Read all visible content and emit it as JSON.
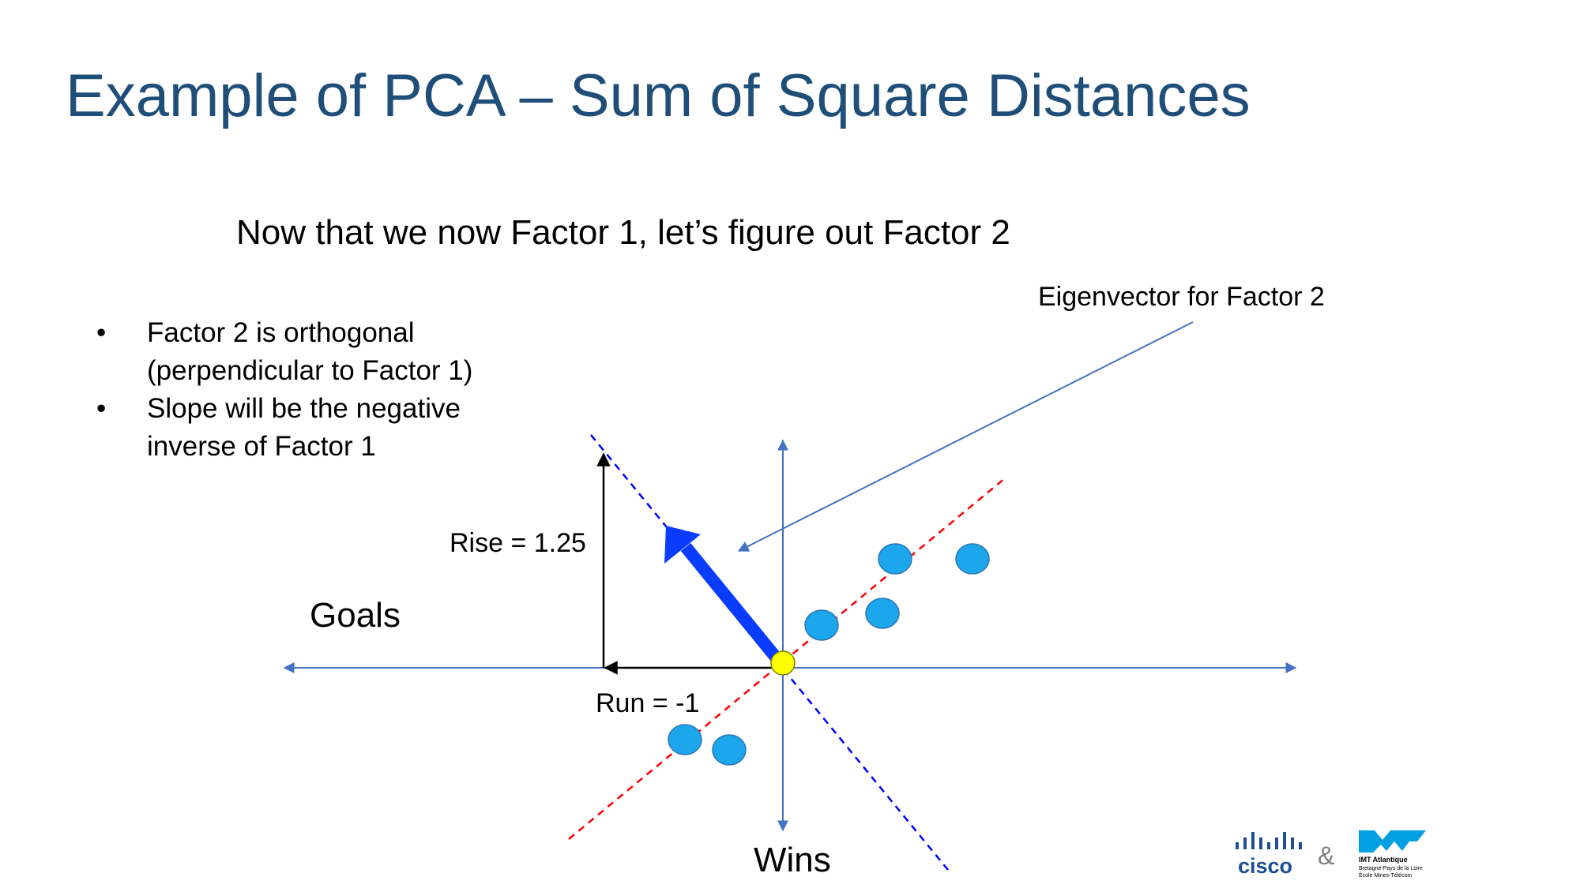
{
  "title": "Example of PCA – Sum of Square Distances",
  "subtitle": "Now that we now Factor 1, let’s figure out Factor 2",
  "bullets": [
    "Factor 2 is orthogonal (perpendicular to Factor 1)",
    "Slope will be the negative inverse of Factor 1"
  ],
  "diagram": {
    "eigenvector_label": "Eigenvector for Factor 2",
    "rise_label": "Rise = 1.25",
    "run_label": "Run = -1",
    "x_axis_label": "Goals",
    "y_axis_label": "Wins",
    "rise": 1.25,
    "run": -1,
    "data_points_count": 7
  },
  "logos": {
    "left": "cisco",
    "ampersand": "&",
    "right_title": "IMT Atlantique",
    "right_sub1": "Bretagne-Pays de la Loire",
    "right_sub2": "École Mines-Télécom"
  },
  "colors": {
    "title": "#1f4e79",
    "axis": "#4472c4",
    "factor1_line": "#ff0000",
    "factor2_line": "#0000ff",
    "vector": "#0a3cff",
    "point": "#1ca7ec",
    "origin": "#ffff00"
  }
}
